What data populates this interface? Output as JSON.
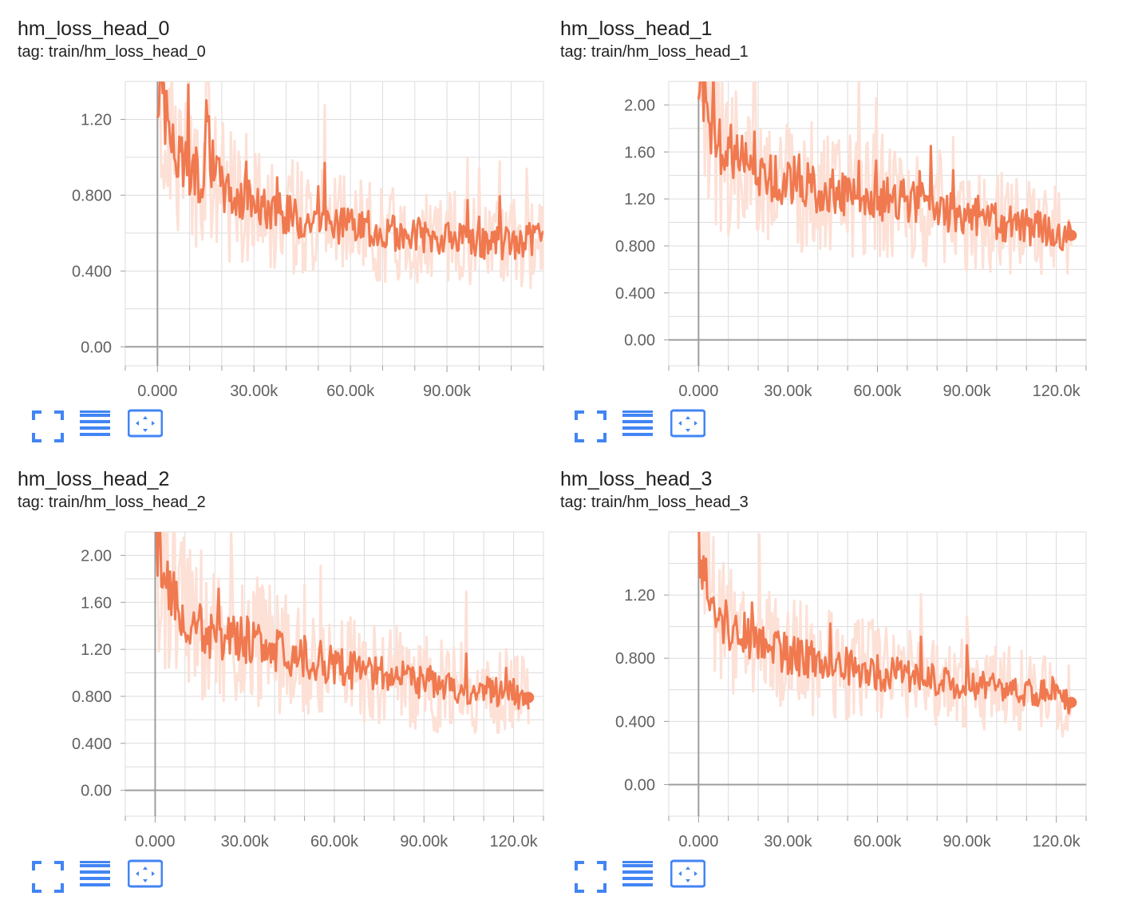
{
  "chart_data": [
    {
      "type": "line",
      "title": "hm_loss_head_0",
      "subtitle": "tag: train/hm_loss_head_0",
      "xlim": [
        -10000,
        120000
      ],
      "ylim": [
        -0.1,
        1.4
      ],
      "xticks": [
        0,
        30000,
        60000,
        90000
      ],
      "xtick_labels": [
        "0.000",
        "30.00k",
        "60.00k",
        "90.00k"
      ],
      "yticks": [
        0,
        0.4,
        0.8,
        1.2
      ],
      "ytick_labels": [
        "0.00",
        "0.400",
        "0.800",
        "1.20"
      ],
      "grid": true,
      "end_marker": false,
      "series": [
        {
          "smoothed": [
            [
              0,
              1.4
            ],
            [
              1500,
              1.35
            ],
            [
              3000,
              1.2
            ],
            [
              5000,
              1.02
            ],
            [
              8000,
              0.95
            ],
            [
              11000,
              0.92
            ],
            [
              14000,
              0.9
            ],
            [
              15500,
              1.3
            ],
            [
              17000,
              0.95
            ],
            [
              20000,
              0.85
            ],
            [
              25000,
              0.78
            ],
            [
              30000,
              0.75
            ],
            [
              35000,
              0.72
            ],
            [
              40000,
              0.7
            ],
            [
              45000,
              0.68
            ],
            [
              50000,
              0.66
            ],
            [
              55000,
              0.64
            ],
            [
              60000,
              0.63
            ],
            [
              65000,
              0.62
            ],
            [
              70000,
              0.61
            ],
            [
              75000,
              0.6
            ],
            [
              80000,
              0.59
            ],
            [
              85000,
              0.58
            ],
            [
              90000,
              0.57
            ],
            [
              95000,
              0.56
            ],
            [
              100000,
              0.55
            ],
            [
              105000,
              0.55
            ],
            [
              110000,
              0.54
            ],
            [
              115000,
              0.55
            ],
            [
              120000,
              0.57
            ]
          ]
        }
      ]
    },
    {
      "type": "line",
      "title": "hm_loss_head_1",
      "subtitle": "tag: train/hm_loss_head_1",
      "xlim": [
        -10000,
        130000
      ],
      "ylim": [
        -0.22,
        2.2
      ],
      "xticks": [
        0,
        30000,
        60000,
        90000,
        120000
      ],
      "xtick_labels": [
        "0.000",
        "30.00k",
        "60.00k",
        "90.00k",
        "120.0k"
      ],
      "yticks": [
        0,
        0.4,
        0.8,
        1.2,
        1.6,
        2.0
      ],
      "ytick_labels": [
        "0.00",
        "0.400",
        "0.800",
        "1.20",
        "1.60",
        "2.00"
      ],
      "grid": true,
      "end_marker": true,
      "series": [
        {
          "smoothed": [
            [
              0,
              2.2
            ],
            [
              1500,
              2.1
            ],
            [
              3000,
              1.9
            ],
            [
              5000,
              1.75
            ],
            [
              8000,
              1.65
            ],
            [
              12000,
              1.55
            ],
            [
              16000,
              1.48
            ],
            [
              20000,
              1.42
            ],
            [
              25000,
              1.38
            ],
            [
              30000,
              1.34
            ],
            [
              35000,
              1.3
            ],
            [
              40000,
              1.27
            ],
            [
              45000,
              1.25
            ],
            [
              50000,
              1.23
            ],
            [
              55000,
              1.22
            ],
            [
              60000,
              1.21
            ],
            [
              65000,
              1.2
            ],
            [
              70000,
              1.18
            ],
            [
              75000,
              1.15
            ],
            [
              80000,
              1.12
            ],
            [
              85000,
              1.09
            ],
            [
              90000,
              1.06
            ],
            [
              95000,
              1.03
            ],
            [
              100000,
              1.0
            ],
            [
              105000,
              0.98
            ],
            [
              110000,
              0.96
            ],
            [
              115000,
              0.94
            ],
            [
              120000,
              0.92
            ],
            [
              125000,
              0.89
            ]
          ]
        }
      ]
    },
    {
      "type": "line",
      "title": "hm_loss_head_2",
      "subtitle": "tag: train/hm_loss_head_2",
      "xlim": [
        -10000,
        130000
      ],
      "ylim": [
        -0.22,
        2.2
      ],
      "xticks": [
        0,
        30000,
        60000,
        90000,
        120000
      ],
      "xtick_labels": [
        "0.000",
        "30.00k",
        "60.00k",
        "90.00k",
        "120.0k"
      ],
      "yticks": [
        0,
        0.4,
        0.8,
        1.2,
        1.6,
        2.0
      ],
      "ytick_labels": [
        "0.00",
        "0.400",
        "0.800",
        "1.20",
        "1.60",
        "2.00"
      ],
      "grid": true,
      "end_marker": true,
      "series": [
        {
          "smoothed": [
            [
              0,
              2.2
            ],
            [
              1500,
              2.05
            ],
            [
              3000,
              1.85
            ],
            [
              5000,
              1.7
            ],
            [
              8000,
              1.55
            ],
            [
              12000,
              1.42
            ],
            [
              16000,
              1.35
            ],
            [
              20000,
              1.32
            ],
            [
              25000,
              1.3
            ],
            [
              30000,
              1.28
            ],
            [
              35000,
              1.25
            ],
            [
              40000,
              1.2
            ],
            [
              45000,
              1.15
            ],
            [
              50000,
              1.12
            ],
            [
              55000,
              1.1
            ],
            [
              60000,
              1.07
            ],
            [
              65000,
              1.03
            ],
            [
              70000,
              1.0
            ],
            [
              75000,
              0.98
            ],
            [
              80000,
              0.97
            ],
            [
              85000,
              0.95
            ],
            [
              90000,
              0.92
            ],
            [
              95000,
              0.9
            ],
            [
              100000,
              0.88
            ],
            [
              105000,
              0.86
            ],
            [
              110000,
              0.84
            ],
            [
              115000,
              0.83
            ],
            [
              120000,
              0.82
            ],
            [
              125000,
              0.79
            ]
          ]
        }
      ]
    },
    {
      "type": "line",
      "title": "hm_loss_head_3",
      "subtitle": "tag: train/hm_loss_head_3",
      "xlim": [
        -10000,
        130000
      ],
      "ylim": [
        -0.2,
        1.6
      ],
      "xticks": [
        0,
        30000,
        60000,
        90000,
        120000
      ],
      "xtick_labels": [
        "0.000",
        "30.00k",
        "60.00k",
        "90.00k",
        "120.0k"
      ],
      "yticks": [
        0,
        0.4,
        0.8,
        1.2
      ],
      "ytick_labels": [
        "0.00",
        "0.400",
        "0.800",
        "1.20"
      ],
      "grid": true,
      "end_marker": true,
      "series": [
        {
          "smoothed": [
            [
              0,
              1.6
            ],
            [
              1500,
              1.45
            ],
            [
              3000,
              1.25
            ],
            [
              5000,
              1.1
            ],
            [
              8000,
              1.02
            ],
            [
              12000,
              0.98
            ],
            [
              16000,
              0.95
            ],
            [
              20000,
              0.9
            ],
            [
              25000,
              0.86
            ],
            [
              30000,
              0.83
            ],
            [
              35000,
              0.8
            ],
            [
              40000,
              0.78
            ],
            [
              45000,
              0.76
            ],
            [
              50000,
              0.75
            ],
            [
              55000,
              0.73
            ],
            [
              60000,
              0.71
            ],
            [
              65000,
              0.7
            ],
            [
              70000,
              0.69
            ],
            [
              75000,
              0.68
            ],
            [
              80000,
              0.66
            ],
            [
              85000,
              0.65
            ],
            [
              90000,
              0.64
            ],
            [
              95000,
              0.62
            ],
            [
              100000,
              0.61
            ],
            [
              105000,
              0.6
            ],
            [
              110000,
              0.59
            ],
            [
              115000,
              0.58
            ],
            [
              120000,
              0.56
            ],
            [
              125000,
              0.52
            ]
          ]
        }
      ]
    }
  ],
  "colors": {
    "line": "#f0794f",
    "raw_line": "#fde0d6",
    "grid": "#dcdcdc",
    "zero_axis": "#9e9e9e",
    "tick_label": "#616161",
    "icon": "#4285f4"
  },
  "toolbar_icons": [
    "fullscreen-icon",
    "data-selection-icon",
    "fit-domain-icon"
  ]
}
